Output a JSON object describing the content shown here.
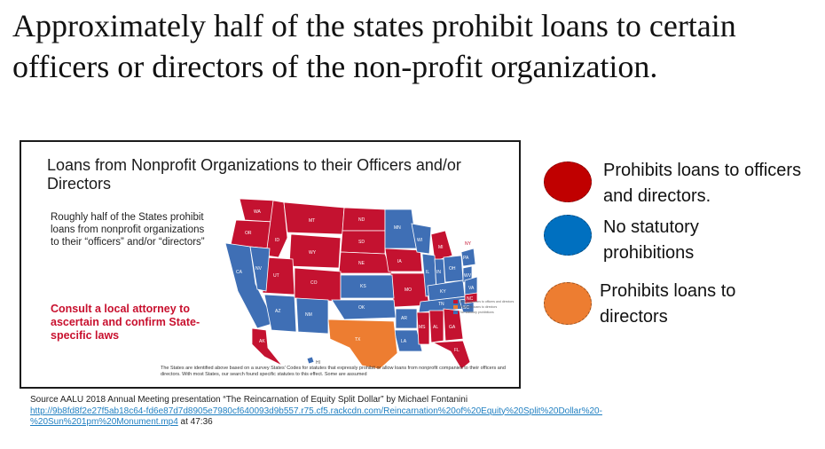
{
  "slide": {
    "title": "Approximately half of the states prohibit loans to certain officers or directors of the non-profit organization."
  },
  "map_panel": {
    "title": "Loans from Nonprofit Organizations to their Officers and/or Directors",
    "description": "Roughly half of the States prohibit loans from nonprofit organizations to their “officers” and/or “directors”",
    "call_to_action": "Consult a local attorney to ascertain and confirm State-specific laws",
    "footnote": "The States are identified above based on a survey States' Codes for statutes that expressly prohibit or allow loans from nonprofit companies to their officers and directors. With most States, our search found specific statutes to this effect. Some are assumed",
    "state_labels": [
      "WA",
      "MT",
      "ND",
      "MN",
      "OR",
      "ID",
      "SD",
      "WI",
      "MI",
      "NY",
      "WY",
      "NE",
      "IA",
      "IL",
      "IN",
      "OH",
      "PA",
      "NV",
      "UT",
      "CO",
      "KS",
      "MO",
      "KY",
      "WV",
      "VA",
      "CA",
      "AZ",
      "NM",
      "OK",
      "AR",
      "TN",
      "NC",
      "SC",
      "MS",
      "AL",
      "GA",
      "TX",
      "LA",
      "FL",
      "AK",
      "HI"
    ],
    "mini_legend": [
      "Prohibits loans to officers and directors",
      "Prohibits loans to directors",
      "No statutory prohibitions"
    ]
  },
  "legend": {
    "items": [
      {
        "label": "Prohibits loans to officers and directors.",
        "color": "#c00000"
      },
      {
        "label": "No statutory prohibitions",
        "color": "#0070c0"
      },
      {
        "label": "Prohibits loans to directors",
        "color": "#ed7d31"
      }
    ]
  },
  "colors": {
    "red": "#c41230",
    "blue": "#3f6fb5",
    "orange": "#ed7d31"
  },
  "source": {
    "line1": "Source AALU 2018 Annual Meeting presentation “The Reincarnation of Equity Split Dollar” by Michael Fontanini",
    "link_part1": "http://9b8fd8f2e27f5ab18c64-fd6e87d7d8905e7980cf640093d9b557.r75.cf5.rackcdn.com/Reincarnation%20of%20Equity%20Split%20Dollar%20-",
    "link_part2": "%20Sun%201pm%20Monument.mp4",
    "timestamp": " at 47:36"
  }
}
